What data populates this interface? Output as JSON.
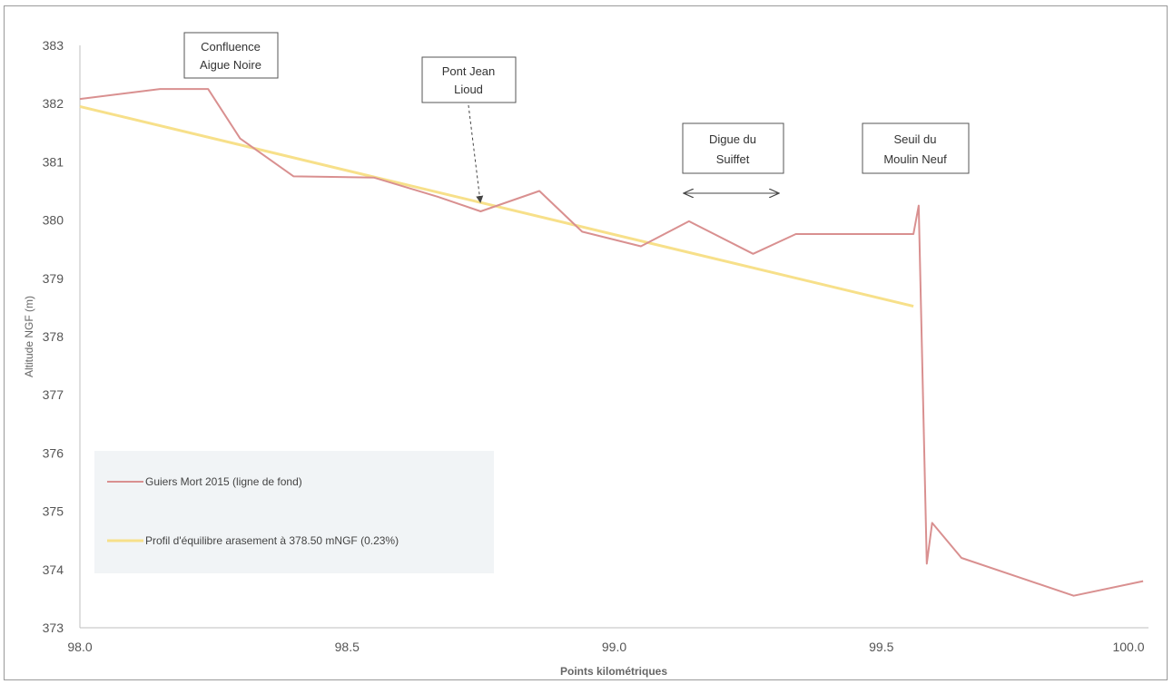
{
  "chart_data": {
    "type": "line",
    "xlabel": "Points kilométriques",
    "ylabel": "Altitude NGF (m)",
    "xlim": [
      98.0,
      100.0
    ],
    "ylim": [
      373,
      383
    ],
    "x_ticks": [
      "98.0",
      "98.5",
      "99.0",
      "99.5",
      "100.0"
    ],
    "y_ticks": [
      "373",
      "374",
      "375",
      "376",
      "377",
      "378",
      "379",
      "380",
      "381",
      "382",
      "383"
    ],
    "grid": false,
    "legend_position": "bottom-left",
    "series": [
      {
        "name": "Guiers Mort 2015 (ligne de fond)",
        "color": "#d99090",
        "points": [
          [
            98.0,
            382.08
          ],
          [
            98.15,
            382.25
          ],
          [
            98.24,
            382.25
          ],
          [
            98.3,
            381.4
          ],
          [
            98.4,
            380.75
          ],
          [
            98.55,
            380.73
          ],
          [
            98.67,
            380.4
          ],
          [
            98.75,
            380.15
          ],
          [
            98.86,
            380.5
          ],
          [
            98.94,
            379.8
          ],
          [
            99.05,
            379.55
          ],
          [
            99.14,
            379.98
          ],
          [
            99.26,
            379.42
          ],
          [
            99.34,
            379.76
          ],
          [
            99.56,
            379.76
          ],
          [
            99.57,
            380.25
          ],
          [
            99.585,
            374.1
          ],
          [
            99.595,
            374.8
          ],
          [
            99.65,
            374.2
          ],
          [
            99.86,
            373.55
          ],
          [
            99.99,
            373.8
          ]
        ]
      },
      {
        "name": "Profil d'équilibre arasement à 378.50 mNGF (0.23%)",
        "color": "#f7e08a",
        "points": [
          [
            98.0,
            381.95
          ],
          [
            99.56,
            378.52
          ]
        ]
      }
    ],
    "annotations": [
      {
        "text": [
          "Confluence",
          "Aigue Noire"
        ]
      },
      {
        "text": [
          "Pont Jean",
          "Lioud"
        ]
      },
      {
        "text": [
          "Digue du",
          "Suiffet"
        ]
      },
      {
        "text": [
          "Seuil du",
          "Moulin Neuf"
        ]
      }
    ]
  }
}
